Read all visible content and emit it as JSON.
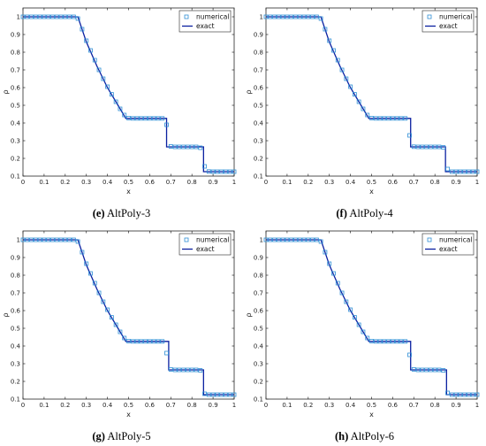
{
  "chart_data": [
    {
      "type": "line",
      "panel": "e",
      "caption_letter": "(e)",
      "caption_text": "AltPoly-3",
      "xlabel": "x",
      "ylabel": "ρ",
      "xlim": [
        0,
        1
      ],
      "ylim": [
        0.1,
        1.05
      ],
      "xticks": [
        "0",
        "0.1",
        "0.2",
        "0.3",
        "0.4",
        "0.5",
        "0.6",
        "0.7",
        "0.8",
        "0.9",
        "1"
      ],
      "yticks": [
        "0.1",
        "0.2",
        "0.3",
        "0.4",
        "0.5",
        "0.6",
        "0.7",
        "0.8",
        "0.9",
        "1"
      ],
      "legend": {
        "position": "top-right",
        "entries": [
          "numerical",
          "exact"
        ]
      },
      "colors": {
        "exact": "#0a1fa0",
        "numerical": "#2f8fd6"
      },
      "grid": false,
      "series": [
        {
          "name": "exact",
          "style": "line",
          "x": [
            0,
            0.26,
            0.3,
            0.35,
            0.4,
            0.45,
            0.487,
            0.68,
            0.68,
            0.855,
            0.855,
            1
          ],
          "y": [
            1,
            1,
            0.858,
            0.722,
            0.6,
            0.5,
            0.426,
            0.426,
            0.265,
            0.265,
            0.125,
            0.125
          ]
        },
        {
          "name": "numerical",
          "style": "markers",
          "x": [
            0,
            0.02,
            0.04,
            0.06,
            0.08,
            0.1,
            0.12,
            0.14,
            0.16,
            0.18,
            0.2,
            0.22,
            0.24,
            0.26,
            0.28,
            0.3,
            0.32,
            0.34,
            0.36,
            0.38,
            0.4,
            0.42,
            0.44,
            0.46,
            0.48,
            0.5,
            0.52,
            0.54,
            0.56,
            0.58,
            0.6,
            0.62,
            0.64,
            0.66,
            0.68,
            0.7,
            0.72,
            0.74,
            0.76,
            0.78,
            0.8,
            0.82,
            0.84,
            0.86,
            0.88,
            0.9,
            0.92,
            0.94,
            0.96,
            0.98,
            1.0
          ],
          "y": [
            1,
            1,
            1,
            1,
            1,
            1,
            1,
            1,
            1,
            1,
            1,
            1,
            1,
            0.99,
            0.93,
            0.865,
            0.81,
            0.755,
            0.7,
            0.65,
            0.605,
            0.562,
            0.52,
            0.48,
            0.445,
            0.428,
            0.426,
            0.426,
            0.426,
            0.426,
            0.426,
            0.426,
            0.426,
            0.426,
            0.39,
            0.268,
            0.265,
            0.265,
            0.265,
            0.265,
            0.265,
            0.265,
            0.26,
            0.155,
            0.126,
            0.125,
            0.125,
            0.125,
            0.125,
            0.125,
            0.125
          ]
        }
      ]
    },
    {
      "type": "line",
      "panel": "f",
      "caption_letter": "(f)",
      "caption_text": "AltPoly-4",
      "xlabel": "x",
      "ylabel": "ρ",
      "xlim": [
        0,
        1
      ],
      "ylim": [
        0.1,
        1.05
      ],
      "xticks": [
        "0",
        "0.1",
        "0.2",
        "0.3",
        "0.4",
        "0.5",
        "0.6",
        "0.7",
        "0.8",
        "0.9",
        "1"
      ],
      "yticks": [
        "0.1",
        "0.2",
        "0.3",
        "0.4",
        "0.5",
        "0.6",
        "0.7",
        "0.8",
        "0.9",
        "1"
      ],
      "legend": {
        "position": "top-right",
        "entries": [
          "numerical",
          "exact"
        ]
      },
      "colors": {
        "exact": "#0a1fa0",
        "numerical": "#2f8fd6"
      },
      "grid": false,
      "series": [
        {
          "name": "exact",
          "style": "line",
          "x": [
            0,
            0.26,
            0.3,
            0.35,
            0.4,
            0.45,
            0.487,
            0.685,
            0.685,
            0.85,
            0.85,
            1
          ],
          "y": [
            1,
            1,
            0.858,
            0.722,
            0.6,
            0.5,
            0.426,
            0.426,
            0.265,
            0.265,
            0.125,
            0.125
          ]
        },
        {
          "name": "numerical",
          "style": "markers",
          "x": [
            0,
            0.02,
            0.04,
            0.06,
            0.08,
            0.1,
            0.12,
            0.14,
            0.16,
            0.18,
            0.2,
            0.22,
            0.24,
            0.26,
            0.28,
            0.3,
            0.32,
            0.34,
            0.36,
            0.38,
            0.4,
            0.42,
            0.44,
            0.46,
            0.48,
            0.5,
            0.52,
            0.54,
            0.56,
            0.58,
            0.6,
            0.62,
            0.64,
            0.66,
            0.68,
            0.7,
            0.72,
            0.74,
            0.76,
            0.78,
            0.8,
            0.82,
            0.84,
            0.86,
            0.88,
            0.9,
            0.92,
            0.94,
            0.96,
            0.98,
            1.0
          ],
          "y": [
            1,
            1,
            1,
            1,
            1,
            1,
            1,
            1,
            1,
            1,
            1,
            1,
            1,
            0.99,
            0.93,
            0.865,
            0.81,
            0.755,
            0.7,
            0.65,
            0.605,
            0.562,
            0.52,
            0.48,
            0.445,
            0.428,
            0.426,
            0.426,
            0.426,
            0.426,
            0.426,
            0.426,
            0.426,
            0.426,
            0.33,
            0.266,
            0.265,
            0.265,
            0.265,
            0.265,
            0.265,
            0.265,
            0.262,
            0.14,
            0.125,
            0.125,
            0.125,
            0.125,
            0.125,
            0.125,
            0.125
          ]
        }
      ]
    },
    {
      "type": "line",
      "panel": "g",
      "caption_letter": "(g)",
      "caption_text": "AltPoly-5",
      "xlabel": "x",
      "ylabel": "ρ",
      "xlim": [
        0,
        1
      ],
      "ylim": [
        0.1,
        1.05
      ],
      "xticks": [
        "0",
        "0.1",
        "0.2",
        "0.3",
        "0.4",
        "0.5",
        "0.6",
        "0.7",
        "0.8",
        "0.9",
        "1"
      ],
      "yticks": [
        "0.1",
        "0.2",
        "0.3",
        "0.4",
        "0.5",
        "0.6",
        "0.7",
        "0.8",
        "0.9",
        "1"
      ],
      "legend": {
        "position": "top-right",
        "entries": [
          "numerical",
          "exact"
        ]
      },
      "colors": {
        "exact": "#0a1fa0",
        "numerical": "#2f8fd6"
      },
      "grid": false,
      "series": [
        {
          "name": "exact",
          "style": "line",
          "x": [
            0,
            0.26,
            0.3,
            0.35,
            0.4,
            0.45,
            0.487,
            0.69,
            0.69,
            0.855,
            0.855,
            1
          ],
          "y": [
            1,
            1,
            0.858,
            0.722,
            0.6,
            0.5,
            0.426,
            0.426,
            0.265,
            0.265,
            0.125,
            0.125
          ]
        },
        {
          "name": "numerical",
          "style": "markers",
          "x": [
            0,
            0.02,
            0.04,
            0.06,
            0.08,
            0.1,
            0.12,
            0.14,
            0.16,
            0.18,
            0.2,
            0.22,
            0.24,
            0.26,
            0.28,
            0.3,
            0.32,
            0.34,
            0.36,
            0.38,
            0.4,
            0.42,
            0.44,
            0.46,
            0.48,
            0.5,
            0.52,
            0.54,
            0.56,
            0.58,
            0.6,
            0.62,
            0.64,
            0.66,
            0.68,
            0.7,
            0.72,
            0.74,
            0.76,
            0.78,
            0.8,
            0.82,
            0.84,
            0.86,
            0.88,
            0.9,
            0.92,
            0.94,
            0.96,
            0.98,
            1.0
          ],
          "y": [
            1,
            1,
            1,
            1,
            1,
            1,
            1,
            1,
            1,
            1,
            1,
            1,
            1,
            0.99,
            0.93,
            0.865,
            0.81,
            0.755,
            0.7,
            0.65,
            0.605,
            0.562,
            0.52,
            0.48,
            0.445,
            0.428,
            0.426,
            0.426,
            0.426,
            0.426,
            0.426,
            0.426,
            0.426,
            0.426,
            0.36,
            0.268,
            0.265,
            0.265,
            0.265,
            0.265,
            0.265,
            0.265,
            0.262,
            0.13,
            0.125,
            0.125,
            0.125,
            0.125,
            0.125,
            0.125,
            0.125
          ]
        }
      ]
    },
    {
      "type": "line",
      "panel": "h",
      "caption_letter": "(h)",
      "caption_text": "AltPoly-6",
      "xlabel": "x",
      "ylabel": "ρ",
      "xlim": [
        0,
        1
      ],
      "ylim": [
        0.1,
        1.05
      ],
      "xticks": [
        "0",
        "0.1",
        "0.2",
        "0.3",
        "0.4",
        "0.5",
        "0.6",
        "0.7",
        "0.8",
        "0.9",
        "1"
      ],
      "yticks": [
        "0.1",
        "0.2",
        "0.3",
        "0.4",
        "0.5",
        "0.6",
        "0.7",
        "0.8",
        "0.9",
        "1"
      ],
      "legend": {
        "position": "top-right",
        "entries": [
          "numerical",
          "exact"
        ]
      },
      "colors": {
        "exact": "#0a1fa0",
        "numerical": "#2f8fd6"
      },
      "grid": false,
      "series": [
        {
          "name": "exact",
          "style": "line",
          "x": [
            0,
            0.26,
            0.3,
            0.35,
            0.4,
            0.45,
            0.487,
            0.685,
            0.685,
            0.855,
            0.855,
            1
          ],
          "y": [
            1,
            1,
            0.858,
            0.722,
            0.6,
            0.5,
            0.426,
            0.426,
            0.265,
            0.265,
            0.125,
            0.125
          ]
        },
        {
          "name": "numerical",
          "style": "markers",
          "x": [
            0,
            0.02,
            0.04,
            0.06,
            0.08,
            0.1,
            0.12,
            0.14,
            0.16,
            0.18,
            0.2,
            0.22,
            0.24,
            0.26,
            0.28,
            0.3,
            0.32,
            0.34,
            0.36,
            0.38,
            0.4,
            0.42,
            0.44,
            0.46,
            0.48,
            0.5,
            0.52,
            0.54,
            0.56,
            0.58,
            0.6,
            0.62,
            0.64,
            0.66,
            0.68,
            0.7,
            0.72,
            0.74,
            0.76,
            0.78,
            0.8,
            0.82,
            0.84,
            0.86,
            0.88,
            0.9,
            0.92,
            0.94,
            0.96,
            0.98,
            1.0
          ],
          "y": [
            1,
            1,
            1,
            1,
            1,
            1,
            1,
            1,
            1,
            1,
            1,
            1,
            1,
            0.99,
            0.93,
            0.865,
            0.81,
            0.755,
            0.7,
            0.65,
            0.605,
            0.562,
            0.52,
            0.48,
            0.445,
            0.428,
            0.426,
            0.426,
            0.426,
            0.426,
            0.426,
            0.426,
            0.426,
            0.426,
            0.35,
            0.268,
            0.265,
            0.265,
            0.265,
            0.265,
            0.265,
            0.265,
            0.262,
            0.135,
            0.125,
            0.125,
            0.125,
            0.125,
            0.125,
            0.125,
            0.125
          ]
        }
      ]
    }
  ]
}
